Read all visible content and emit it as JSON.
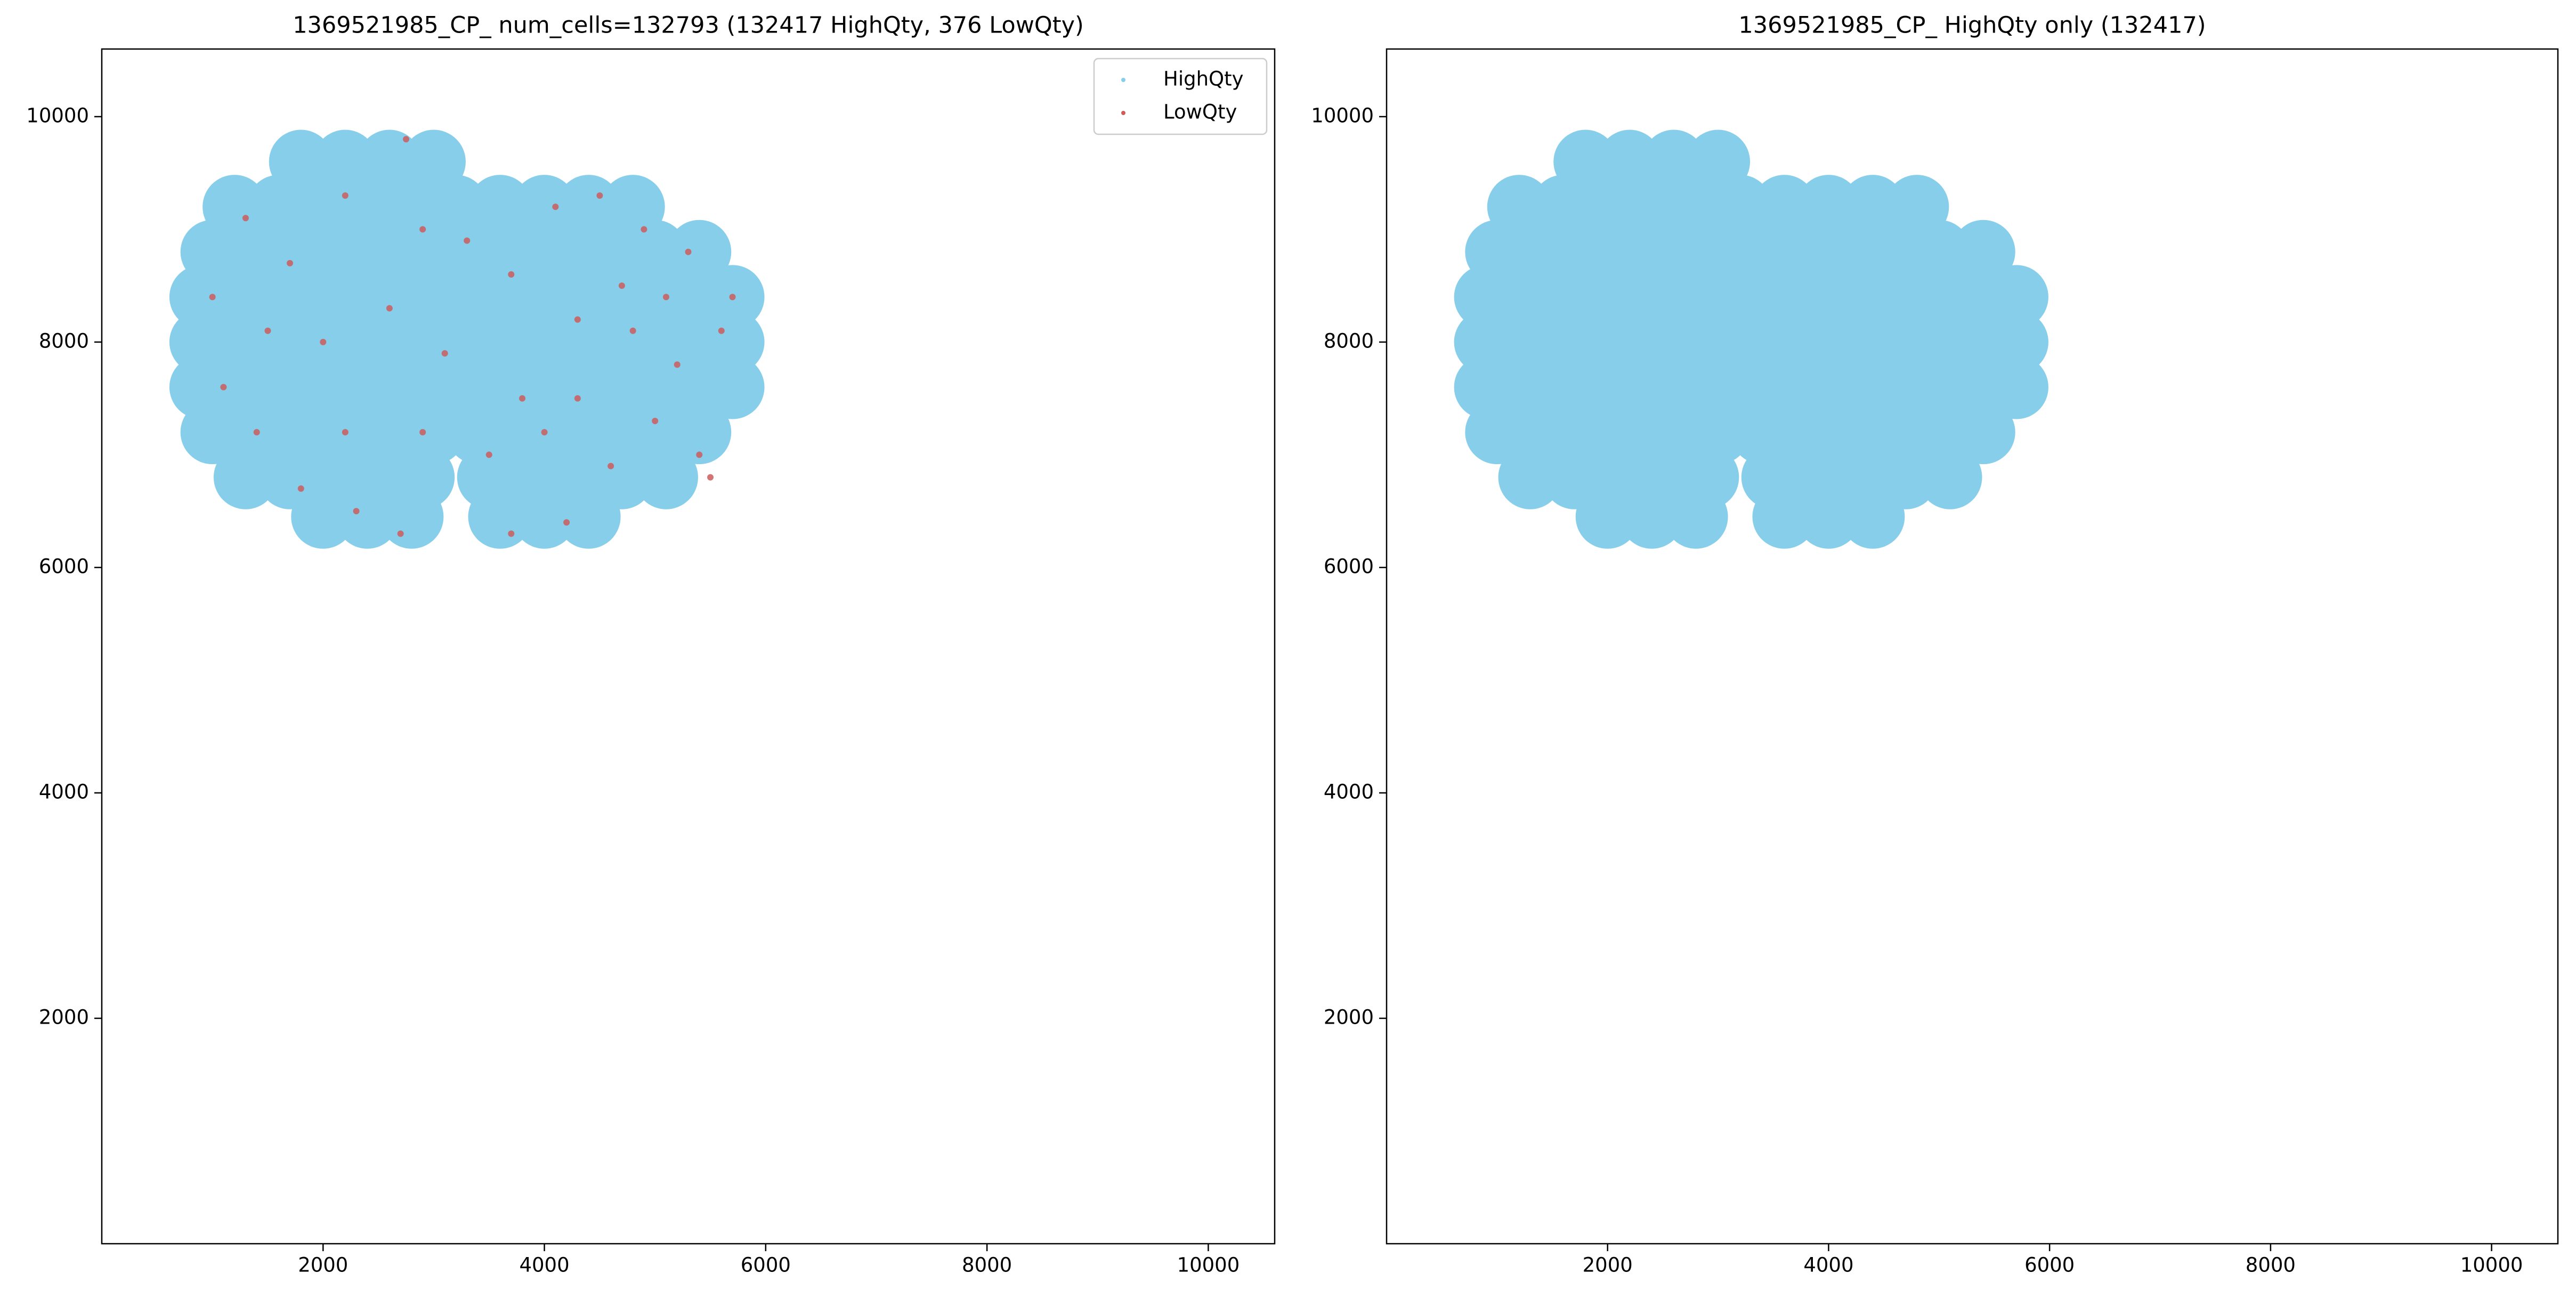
{
  "chart_data": [
    {
      "type": "scatter",
      "title": "1369521985_CP_ num_cells=132793 (132417 HighQty, 376 LowQty)",
      "xlim": [
        0,
        10600
      ],
      "ylim": [
        0,
        10600
      ],
      "xticks": [
        2000,
        4000,
        6000,
        8000,
        10000
      ],
      "yticks": [
        2000,
        4000,
        6000,
        8000,
        10000
      ],
      "legend": "upper right",
      "series": [
        {
          "name": "HighQty",
          "color": "#87ceeb",
          "x": [
            1800,
            2200,
            2600,
            3000,
            1200,
            1600,
            2000,
            2400,
            2800,
            3200,
            3600,
            4000,
            4400,
            4800,
            1000,
            1400,
            1800,
            2200,
            2600,
            3000,
            3400,
            3800,
            4200,
            4600,
            5000,
            5400,
            900,
            1300,
            1700,
            2100,
            2500,
            2900,
            3300,
            3700,
            4100,
            4500,
            4900,
            5300,
            5700,
            900,
            1300,
            1700,
            2100,
            2500,
            2900,
            3300,
            3700,
            4100,
            4500,
            4900,
            5300,
            5700,
            900,
            1300,
            1700,
            2100,
            2500,
            2900,
            3300,
            3700,
            4100,
            4500,
            4900,
            5300,
            5700,
            1000,
            1400,
            1800,
            2200,
            2600,
            3000,
            3400,
            3800,
            4200,
            4600,
            5000,
            5400,
            1300,
            1700,
            2100,
            2500,
            2900,
            3500,
            3900,
            4300,
            4700,
            5100,
            2000,
            2400,
            2800,
            3600,
            4000,
            4400
          ],
          "y": [
            9600,
            9600,
            9600,
            9600,
            9200,
            9200,
            9200,
            9200,
            9200,
            9200,
            9200,
            9200,
            9200,
            9200,
            8800,
            8800,
            8800,
            8800,
            8800,
            8800,
            8800,
            8800,
            8800,
            8800,
            8800,
            8800,
            8400,
            8400,
            8400,
            8400,
            8400,
            8400,
            8400,
            8400,
            8400,
            8400,
            8400,
            8400,
            8400,
            8000,
            8000,
            8000,
            8000,
            8000,
            8000,
            8000,
            8000,
            8000,
            8000,
            8000,
            8000,
            8000,
            7600,
            7600,
            7600,
            7600,
            7600,
            7600,
            7600,
            7600,
            7600,
            7600,
            7600,
            7600,
            7600,
            7200,
            7200,
            7200,
            7200,
            7200,
            7200,
            7200,
            7200,
            7200,
            7200,
            7200,
            7200,
            6800,
            6800,
            6800,
            6800,
            6800,
            6800,
            6800,
            6800,
            6800,
            6800,
            6450,
            6450,
            6450,
            6450,
            6450,
            6450
          ]
        },
        {
          "name": "LowQty",
          "color": "#cd5c5c",
          "x": [
            2750,
            1300,
            1700,
            2200,
            2900,
            3300,
            1000,
            1500,
            2000,
            2600,
            3100,
            3700,
            4100,
            4500,
            4900,
            5300,
            5700,
            5600,
            5200,
            4800,
            4300,
            3800,
            3500,
            4000,
            4600,
            5000,
            5400,
            5500,
            4200,
            3700,
            2700,
            2300,
            1800,
            1400,
            1100,
            2200,
            2900,
            4700,
            5100,
            4300
          ],
          "y": [
            9800,
            9100,
            8700,
            9300,
            9000,
            8900,
            8400,
            8100,
            8000,
            8300,
            7900,
            8600,
            9200,
            9300,
            9000,
            8800,
            8400,
            8100,
            7800,
            8100,
            7500,
            7500,
            7000,
            7200,
            6900,
            7300,
            7000,
            6800,
            6400,
            6300,
            6300,
            6500,
            6700,
            7200,
            7600,
            7200,
            7200,
            8500,
            8400,
            8200
          ]
        }
      ]
    },
    {
      "type": "scatter",
      "title": "1369521985_CP_ HighQty only (132417)",
      "xlim": [
        0,
        10600
      ],
      "ylim": [
        0,
        10600
      ],
      "xticks": [
        2000,
        4000,
        6000,
        8000,
        10000
      ],
      "yticks": [
        2000,
        4000,
        6000,
        8000,
        10000
      ],
      "series": [
        {
          "name": "HighQty",
          "color": "#87ceeb",
          "x": [
            1800,
            2200,
            2600,
            3000,
            1200,
            1600,
            2000,
            2400,
            2800,
            3200,
            3600,
            4000,
            4400,
            4800,
            1000,
            1400,
            1800,
            2200,
            2600,
            3000,
            3400,
            3800,
            4200,
            4600,
            5000,
            5400,
            900,
            1300,
            1700,
            2100,
            2500,
            2900,
            3300,
            3700,
            4100,
            4500,
            4900,
            5300,
            5700,
            900,
            1300,
            1700,
            2100,
            2500,
            2900,
            3300,
            3700,
            4100,
            4500,
            4900,
            5300,
            5700,
            900,
            1300,
            1700,
            2100,
            2500,
            2900,
            3300,
            3700,
            4100,
            4500,
            4900,
            5300,
            5700,
            1000,
            1400,
            1800,
            2200,
            2600,
            3000,
            3400,
            3800,
            4200,
            4600,
            5000,
            5400,
            1300,
            1700,
            2100,
            2500,
            2900,
            3500,
            3900,
            4300,
            4700,
            5100,
            2000,
            2400,
            2800,
            3600,
            4000,
            4400
          ],
          "y": [
            9600,
            9600,
            9600,
            9600,
            9200,
            9200,
            9200,
            9200,
            9200,
            9200,
            9200,
            9200,
            9200,
            9200,
            8800,
            8800,
            8800,
            8800,
            8800,
            8800,
            8800,
            8800,
            8800,
            8800,
            8800,
            8800,
            8400,
            8400,
            8400,
            8400,
            8400,
            8400,
            8400,
            8400,
            8400,
            8400,
            8400,
            8400,
            8400,
            8000,
            8000,
            8000,
            8000,
            8000,
            8000,
            8000,
            8000,
            8000,
            8000,
            8000,
            8000,
            8000,
            7600,
            7600,
            7600,
            7600,
            7600,
            7600,
            7600,
            7600,
            7600,
            7600,
            7600,
            7600,
            7600,
            7200,
            7200,
            7200,
            7200,
            7200,
            7200,
            7200,
            7200,
            7200,
            7200,
            7200,
            7200,
            6800,
            6800,
            6800,
            6800,
            6800,
            6800,
            6800,
            6800,
            6800,
            6800,
            6450,
            6450,
            6450,
            6450,
            6450,
            6450
          ]
        }
      ]
    }
  ]
}
